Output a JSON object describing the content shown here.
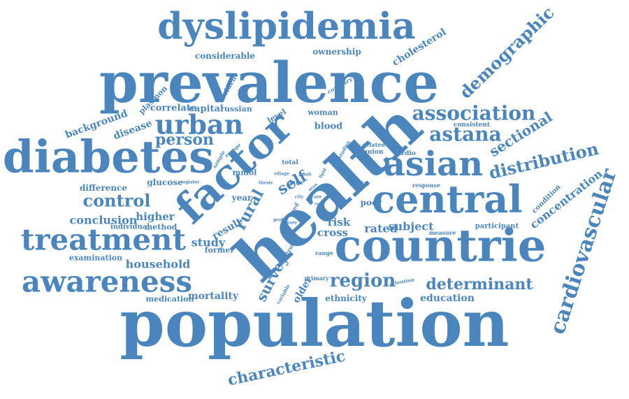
{
  "color": "#4a86bd",
  "words": [
    {
      "text": "population",
      "size": 92,
      "rotation": 0
    },
    {
      "text": "health",
      "size": 90,
      "rotation": -43
    },
    {
      "text": "prevalence",
      "size": 80,
      "rotation": 0
    },
    {
      "text": "countrie",
      "size": 64,
      "rotation": 0
    },
    {
      "text": "diabetes",
      "size": 64,
      "rotation": 0
    },
    {
      "text": "factor",
      "size": 60,
      "rotation": -43
    },
    {
      "text": "dyslipidemia",
      "size": 52,
      "rotation": 0
    },
    {
      "text": "central",
      "size": 54,
      "rotation": 0
    },
    {
      "text": "asian",
      "size": 48,
      "rotation": 0
    },
    {
      "text": "treatment",
      "size": 42,
      "rotation": 0
    },
    {
      "text": "awareness",
      "size": 42,
      "rotation": 0
    },
    {
      "text": "urban",
      "size": 38,
      "rotation": 0
    },
    {
      "text": "association",
      "size": 28,
      "rotation": 0
    },
    {
      "text": "astana",
      "size": 28,
      "rotation": 0
    },
    {
      "text": "cardiovascular",
      "size": 30,
      "rotation": -72
    },
    {
      "text": "demographic",
      "size": 24,
      "rotation": -44
    },
    {
      "text": "distribution",
      "size": 24,
      "rotation": -13
    },
    {
      "text": "region",
      "size": 26,
      "rotation": 0
    },
    {
      "text": "determinant",
      "size": 22,
      "rotation": 0
    },
    {
      "text": "control",
      "size": 24,
      "rotation": 0
    },
    {
      "text": "person",
      "size": 22,
      "rotation": 0
    },
    {
      "text": "rural",
      "size": 22,
      "rotation": -62
    },
    {
      "text": "self",
      "size": 22,
      "rotation": -30
    },
    {
      "text": "survey",
      "size": 20,
      "rotation": -62
    },
    {
      "text": "characteristic",
      "size": 22,
      "rotation": -12
    },
    {
      "text": "sectional",
      "size": 20,
      "rotation": -32
    },
    {
      "text": "concentration",
      "size": 16,
      "rotation": -38
    },
    {
      "text": "household",
      "size": 16,
      "rotation": 0
    },
    {
      "text": "conclusion",
      "size": 16,
      "rotation": 0
    },
    {
      "text": "study",
      "size": 16,
      "rotation": 0
    },
    {
      "text": "rated",
      "size": 16,
      "rotation": 0
    },
    {
      "text": "subject",
      "size": 16,
      "rotation": 0
    },
    {
      "text": "risk",
      "size": 15,
      "rotation": 0
    },
    {
      "text": "cross",
      "size": 15,
      "rotation": 0
    },
    {
      "text": "higher",
      "size": 15,
      "rotation": 0
    },
    {
      "text": "mortality",
      "size": 14,
      "rotation": 0
    },
    {
      "text": "education",
      "size": 14,
      "rotation": 0
    },
    {
      "text": "cholesterol",
      "size": 14,
      "rotation": -32
    },
    {
      "text": "background",
      "size": 14,
      "rotation": -20
    },
    {
      "text": "disease",
      "size": 14,
      "rotation": -20
    },
    {
      "text": "result",
      "size": 14,
      "rotation": -30
    },
    {
      "text": "older",
      "size": 14,
      "rotation": -60
    },
    {
      "text": "blood",
      "size": 13,
      "rotation": 0
    },
    {
      "text": "capital",
      "size": 13,
      "rotation": 0
    },
    {
      "text": "correlate",
      "size": 13,
      "rotation": 0
    },
    {
      "text": "difference",
      "size": 12,
      "rotation": 0
    },
    {
      "text": "glucose",
      "size": 12,
      "rotation": 0
    },
    {
      "text": "ownership",
      "size": 12,
      "rotation": 0
    },
    {
      "text": "considerable",
      "size": 12,
      "rotation": 0
    },
    {
      "text": "ethnicity",
      "size": 12,
      "rotation": 0
    },
    {
      "text": "case",
      "size": 12,
      "rotation": 0
    },
    {
      "text": "poor",
      "size": 12,
      "rotation": 0
    },
    {
      "text": "year",
      "size": 12,
      "rotation": 0
    },
    {
      "text": "examination",
      "size": 11,
      "rotation": 0
    },
    {
      "text": "medication",
      "size": 11,
      "rotation": 0
    },
    {
      "text": "method",
      "size": 11,
      "rotation": 0
    },
    {
      "text": "former",
      "size": 11,
      "rotation": 0
    },
    {
      "text": "mmol",
      "size": 11,
      "rotation": 0
    },
    {
      "text": "woman",
      "size": 11,
      "rotation": 0
    },
    {
      "text": "russian",
      "size": 11,
      "rotation": 0
    },
    {
      "text": "level",
      "size": 11,
      "rotation": -30
    },
    {
      "text": "plasmon",
      "size": 11,
      "rotation": -45
    },
    {
      "text": "resident",
      "size": 10,
      "rotation": -60
    },
    {
      "text": "individual",
      "size": 10,
      "rotation": 0
    },
    {
      "text": "participant",
      "size": 10,
      "rotation": 0
    },
    {
      "text": "condition",
      "size": 10,
      "rotation": -45
    },
    {
      "text": "total",
      "size": 9,
      "rotation": 0
    },
    {
      "text": "data",
      "size": 9,
      "rotation": 0
    },
    {
      "text": "consistent",
      "size": 9,
      "rotation": 0
    },
    {
      "text": "cardio",
      "size": 9,
      "rotation": 0
    },
    {
      "text": "union",
      "size": 9,
      "rotation": 0
    },
    {
      "text": "related",
      "size": 8,
      "rotation": 0
    },
    {
      "text": "response",
      "size": 8,
      "rotation": 0
    },
    {
      "text": "measure",
      "size": 8,
      "rotation": 0
    },
    {
      "text": "range",
      "size": 8,
      "rotation": 0
    },
    {
      "text": "primary",
      "size": 8,
      "rotation": 0
    },
    {
      "text": "attention",
      "size": 7,
      "rotation": -10
    },
    {
      "text": "coronary",
      "size": 8,
      "rotation": -30
    },
    {
      "text": "stroke",
      "size": 8,
      "rotation": -60
    },
    {
      "text": "aged",
      "size": 8,
      "rotation": -60
    },
    {
      "text": "variable",
      "size": 7,
      "rotation": -60
    },
    {
      "text": "studies",
      "size": 7,
      "rotation": -60
    },
    {
      "text": "europe",
      "size": 7,
      "rotation": -40
    },
    {
      "text": "sample",
      "size": 7,
      "rotation": -60
    },
    {
      "text": "register",
      "size": 6,
      "rotation": 0
    },
    {
      "text": "village",
      "size": 6,
      "rotation": 0
    },
    {
      "text": "adult",
      "size": 6,
      "rotation": 0
    },
    {
      "text": "thesis",
      "size": 6,
      "rotation": 0
    },
    {
      "text": "area",
      "size": 6,
      "rotation": -40
    },
    {
      "text": "care",
      "size": 6,
      "rotation": 0
    },
    {
      "text": "mod",
      "size": 5,
      "rotation": 0
    },
    {
      "text": "city",
      "size": 6,
      "rotation": 0
    },
    {
      "text": "profile",
      "size": 6,
      "rotation": 0
    },
    {
      "text": "aware",
      "size": 6,
      "rotation": 0
    },
    {
      "text": "lipid",
      "size": 6,
      "rotation": -60
    }
  ]
}
